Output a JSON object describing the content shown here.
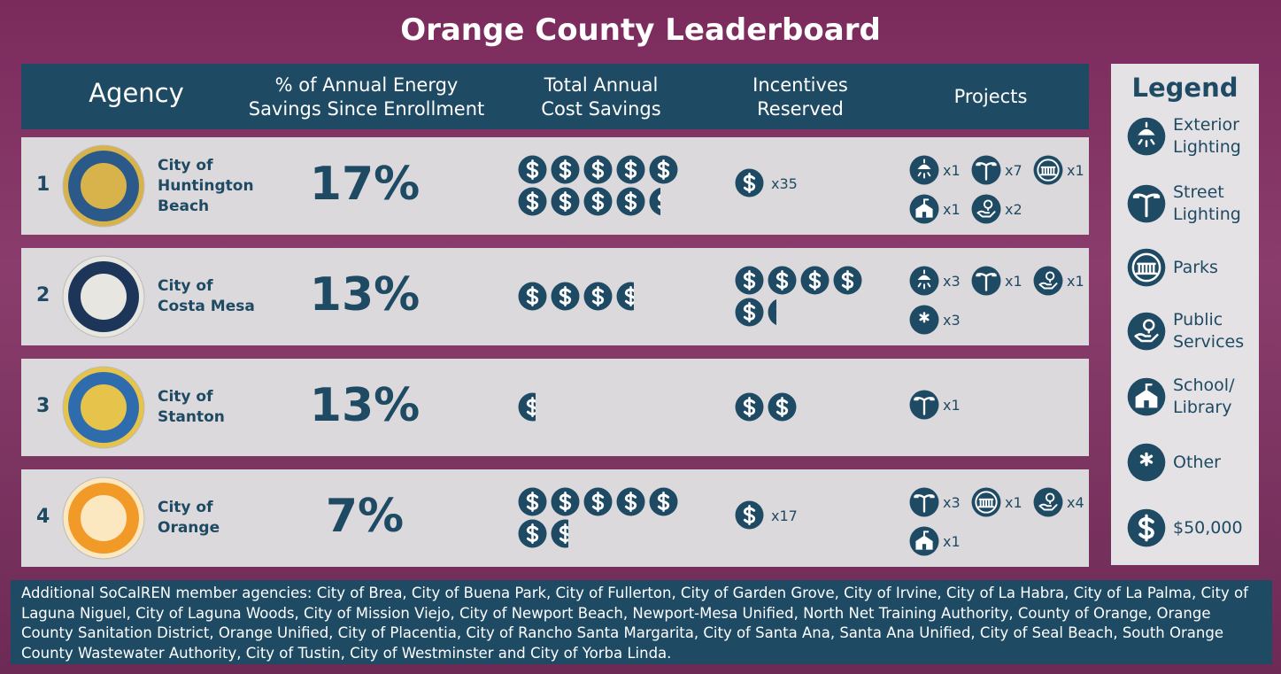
{
  "title": "Orange County Leaderboard",
  "header": {
    "agency": "Agency",
    "energy_lines": [
      "% of Annual Energy",
      "Savings Since Enrollment"
    ],
    "cost_lines": [
      "Total Annual",
      "Cost Savings"
    ],
    "incentives_lines": [
      "Incentives",
      "Reserved"
    ],
    "projects": "Projects"
  },
  "rows": [
    {
      "rank": 1,
      "name_lines": [
        "City of",
        "Huntington",
        "Beach"
      ],
      "energy_savings": "17%",
      "cost_savings_icons": 9.4,
      "incentives": {
        "icons": 1,
        "label": "x35"
      },
      "projects": [
        {
          "type": "exterior",
          "label": "x1"
        },
        {
          "type": "street",
          "label": "x7"
        },
        {
          "type": "parks",
          "label": "x1"
        },
        {
          "type": "school",
          "label": "x1"
        },
        {
          "type": "public",
          "label": "x2"
        }
      ]
    },
    {
      "rank": 2,
      "name_lines": [
        "City of",
        "Costa Mesa"
      ],
      "energy_savings": "13%",
      "cost_savings_icons": 3.6,
      "incentives": {
        "icons": 5.3
      },
      "projects": [
        {
          "type": "exterior",
          "label": "x3"
        },
        {
          "type": "street",
          "label": "x1"
        },
        {
          "type": "public",
          "label": "x1"
        },
        {
          "type": "other",
          "label": "x3"
        }
      ]
    },
    {
      "rank": 3,
      "name_lines": [
        "City of",
        "Stanton"
      ],
      "energy_savings": "13%",
      "cost_savings_icons": 0.6,
      "incentives": {
        "icons": 2
      },
      "projects": [
        {
          "type": "street",
          "label": "x1"
        }
      ]
    },
    {
      "rank": 4,
      "name_lines": [
        "City of",
        "Orange"
      ],
      "energy_savings": "7%",
      "cost_savings_icons": 6.6,
      "incentives": {
        "icons": 1,
        "label": "x17"
      },
      "projects": [
        {
          "type": "street",
          "label": "x3"
        },
        {
          "type": "parks",
          "label": "x1"
        },
        {
          "type": "public",
          "label": "x4"
        },
        {
          "type": "school",
          "label": "x1"
        }
      ]
    }
  ],
  "legend": {
    "title": "Legend",
    "items": [
      {
        "type": "exterior",
        "label_lines": [
          "Exterior",
          "Lighting"
        ]
      },
      {
        "type": "street",
        "label_lines": [
          "Street",
          "Lighting"
        ]
      },
      {
        "type": "parks",
        "label_lines": [
          "Parks"
        ]
      },
      {
        "type": "public",
        "label_lines": [
          "Public",
          "Services"
        ]
      },
      {
        "type": "school",
        "label_lines": [
          "School/",
          "Library"
        ]
      },
      {
        "type": "other",
        "label_lines": [
          "Other"
        ]
      },
      {
        "type": "dollar",
        "label_lines": [
          "$50,000"
        ]
      }
    ]
  },
  "footer": {
    "text": "Additional SoCalREN member agencies: City of Brea, City of Buena Park, City of Fullerton, City of Garden Grove, City of Irvine, City of La Habra, City of La Palma, City of Laguna Niguel, City of Laguna Woods, City of Mission Viejo, City of Newport Beach, Newport-Mesa Unified, North Net Training Authority, County of Orange, Orange County Sanitation District, Orange Unified, City of Placentia, City of Rancho Santa Margarita, City of Santa Ana, Santa Ana Unified, City of Seal Beach, South Orange County Wastewater Authority, City of Tustin, City of Westminster and City of Yorba Linda."
  }
}
